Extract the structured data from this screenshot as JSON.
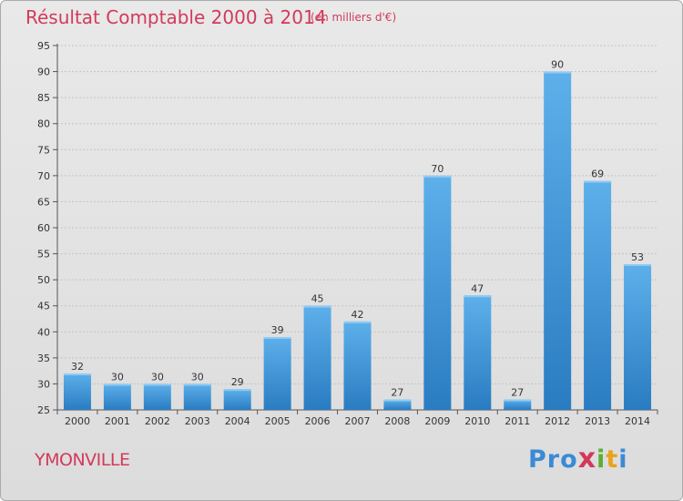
{
  "chart_data": {
    "type": "bar",
    "title": "Résultat Comptable 2000 à 2014",
    "subtitle": "(en milliers d'€)",
    "categories": [
      "2000",
      "2001",
      "2002",
      "2003",
      "2004",
      "2005",
      "2006",
      "2007",
      "2008",
      "2009",
      "2010",
      "2011",
      "2012",
      "2013",
      "2014"
    ],
    "values": [
      32,
      30,
      30,
      30,
      29,
      39,
      45,
      42,
      27,
      70,
      47,
      27,
      90,
      69,
      53
    ],
    "ylim": [
      25,
      95
    ],
    "yticks": [
      25,
      30,
      35,
      40,
      45,
      50,
      55,
      60,
      65,
      70,
      75,
      80,
      85,
      90,
      95
    ],
    "xlabel": "",
    "ylabel": "",
    "grid": true
  },
  "footer": {
    "city": "YMONVILLE",
    "logo": [
      "P",
      "r",
      "o",
      "x",
      "i",
      "t",
      "i"
    ]
  },
  "colors": {
    "title": "#d23a5a",
    "bar_light": "#5aaee8",
    "bar_dark": "#2a7fc4",
    "logo": [
      "#3a8ad6",
      "#3a8ad6",
      "#3a8ad6",
      "#d23a5a",
      "#5bb033",
      "#e8a21c",
      "#3a8ad6"
    ]
  }
}
